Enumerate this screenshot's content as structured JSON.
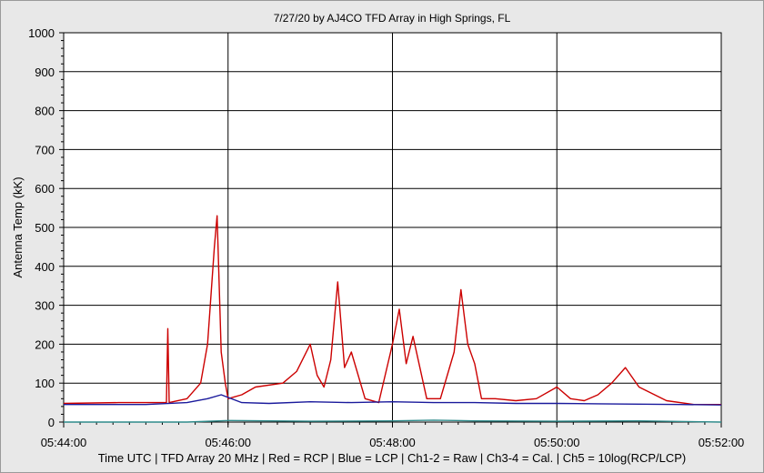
{
  "chart_data": {
    "type": "line",
    "title": "7/27/20  by  AJ4CO TFD Array  in  High Springs, FL",
    "ylabel": "Antenna Temp (kK)",
    "xlabel": "Time UTC | TFD Array 20 MHz | Red = RCP | Blue = LCP | Ch1-2 = Raw | Ch3-4 = Cal. | Ch5 = 10log(RCP/LCP)",
    "xlim": [
      "05:44:00",
      "05:52:00"
    ],
    "ylim": [
      0,
      1000
    ],
    "x_ticks": [
      "05:44:00",
      "05:46:00",
      "05:48:00",
      "05:50:00",
      "05:52:00"
    ],
    "y_ticks": [
      "0",
      "100",
      "200",
      "300",
      "400",
      "500",
      "600",
      "700",
      "800",
      "900",
      "1000"
    ],
    "grid": true,
    "series": [
      {
        "name": "RCP",
        "color": "#cc0000",
        "x": [
          "05:44:00",
          "05:44:40",
          "05:45:00",
          "05:45:15",
          "05:45:16",
          "05:45:17",
          "05:45:30",
          "05:45:40",
          "05:45:45",
          "05:45:50",
          "05:45:52",
          "05:45:55",
          "05:45:58",
          "05:46:00",
          "05:46:10",
          "05:46:20",
          "05:46:40",
          "05:46:50",
          "05:47:00",
          "05:47:05",
          "05:47:10",
          "05:47:15",
          "05:47:20",
          "05:47:25",
          "05:47:30",
          "05:47:40",
          "05:47:50",
          "05:48:00",
          "05:48:05",
          "05:48:10",
          "05:48:15",
          "05:48:25",
          "05:48:35",
          "05:48:45",
          "05:48:50",
          "05:48:55",
          "05:49:00",
          "05:49:05",
          "05:49:15",
          "05:49:30",
          "05:49:45",
          "05:50:00",
          "05:50:10",
          "05:50:20",
          "05:50:30",
          "05:50:40",
          "05:50:50",
          "05:51:00",
          "05:51:20",
          "05:51:40",
          "05:52:00"
        ],
        "y": [
          48,
          50,
          50,
          50,
          240,
          50,
          60,
          100,
          200,
          450,
          530,
          180,
          100,
          60,
          70,
          90,
          100,
          130,
          200,
          120,
          90,
          160,
          360,
          140,
          180,
          60,
          50,
          200,
          290,
          150,
          220,
          60,
          60,
          180,
          340,
          200,
          150,
          60,
          60,
          55,
          60,
          90,
          60,
          55,
          70,
          100,
          140,
          90,
          55,
          45,
          45
        ]
      },
      {
        "name": "LCP",
        "color": "#1a1a9c",
        "x": [
          "05:44:00",
          "05:45:00",
          "05:45:30",
          "05:45:45",
          "05:45:55",
          "05:46:10",
          "05:46:30",
          "05:47:00",
          "05:47:30",
          "05:48:00",
          "05:48:30",
          "05:49:00",
          "05:49:30",
          "05:50:00",
          "05:50:30",
          "05:51:00",
          "05:51:30",
          "05:52:00"
        ],
        "y": [
          45,
          45,
          50,
          60,
          70,
          50,
          48,
          52,
          50,
          52,
          50,
          50,
          48,
          48,
          47,
          46,
          45,
          44
        ]
      },
      {
        "color": "#2e8b8b",
        "x": [
          "05:44:00",
          "05:45:30",
          "05:46:00",
          "05:47:00",
          "05:48:00",
          "05:48:30",
          "05:49:00",
          "05:50:00",
          "05:51:00",
          "05:52:00"
        ],
        "y": [
          0,
          0,
          4,
          2,
          3,
          5,
          3,
          2,
          3,
          0
        ]
      }
    ]
  }
}
